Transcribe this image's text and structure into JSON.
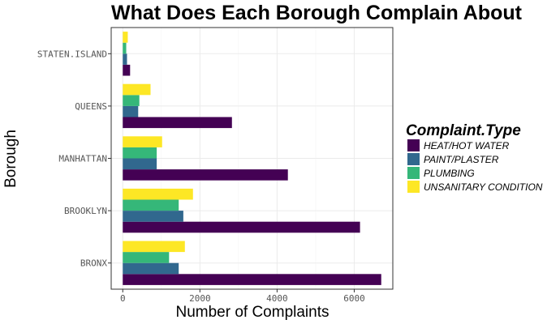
{
  "chart_data": {
    "type": "bar",
    "orientation": "horizontal",
    "title": "What Does Each Borough Complain About",
    "xlabel": "Number of Complaints",
    "ylabel": "Borough",
    "xlim": [
      -300,
      7000
    ],
    "xticks": [
      0,
      2000,
      4000,
      6000
    ],
    "xtick_labels": [
      "0",
      "2000",
      "4000",
      "6000"
    ],
    "categories": [
      "BRONX",
      "BROOKLYN",
      "MANHATTAN",
      "QUEENS",
      "STATEN.ISLAND"
    ],
    "legend": {
      "title": "Complaint.Type",
      "position": "right"
    },
    "grid": true,
    "series": [
      {
        "name": "HEAT/HOT WATER",
        "color": "#440154",
        "values": [
          6700,
          6150,
          4280,
          2830,
          190
        ]
      },
      {
        "name": "PAINT/PLASTER",
        "color": "#31688e",
        "values": [
          1450,
          1570,
          880,
          400,
          110
        ]
      },
      {
        "name": "PLUMBING",
        "color": "#35b779",
        "values": [
          1200,
          1450,
          880,
          430,
          90
        ]
      },
      {
        "name": "UNSANITARY CONDITION",
        "color": "#fde725",
        "values": [
          1610,
          1820,
          1020,
          720,
          130
        ]
      }
    ]
  }
}
